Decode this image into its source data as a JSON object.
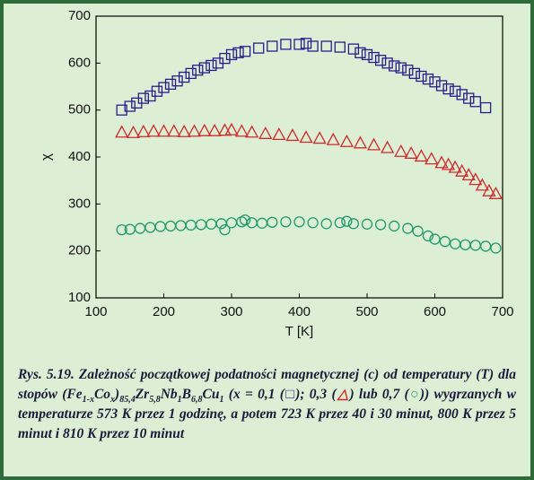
{
  "chart_data": {
    "type": "scatter",
    "xlabel": "T [K]",
    "ylabel": "χ",
    "xlim": [
      100,
      700
    ],
    "xticks": [
      100,
      200,
      300,
      400,
      500,
      600,
      700
    ],
    "ylim": [
      100,
      700
    ],
    "yticks": [
      100,
      200,
      300,
      400,
      500,
      600,
      700
    ],
    "series": [
      {
        "marker": "square",
        "color": "#2b1c8c",
        "x": [
          138,
          150,
          160,
          170,
          180,
          190,
          200,
          210,
          220,
          230,
          240,
          250,
          260,
          270,
          280,
          290,
          300,
          310,
          320,
          340,
          360,
          380,
          400,
          410,
          420,
          440,
          460,
          480,
          490,
          500,
          510,
          520,
          530,
          540,
          550,
          560,
          570,
          580,
          590,
          600,
          610,
          620,
          630,
          640,
          650,
          660,
          675
        ],
        "values": [
          500,
          508,
          515,
          525,
          530,
          540,
          548,
          555,
          562,
          570,
          578,
          585,
          590,
          595,
          600,
          610,
          618,
          622,
          625,
          632,
          636,
          640,
          640,
          642,
          636,
          636,
          634,
          630,
          622,
          618,
          612,
          606,
          600,
          594,
          590,
          585,
          578,
          572,
          566,
          560,
          552,
          545,
          540,
          533,
          525,
          518,
          505
        ]
      },
      {
        "marker": "triangle",
        "color": "#d02a2a",
        "x": [
          138,
          155,
          170,
          185,
          200,
          215,
          230,
          245,
          260,
          275,
          290,
          300,
          315,
          330,
          350,
          370,
          390,
          410,
          430,
          450,
          470,
          490,
          510,
          530,
          550,
          565,
          580,
          595,
          610,
          620,
          630,
          640,
          650,
          660,
          670,
          680,
          690
        ],
        "values": [
          453,
          452,
          454,
          455,
          455,
          455,
          454,
          455,
          456,
          456,
          457,
          458,
          455,
          453,
          450,
          448,
          446,
          442,
          440,
          437,
          433,
          430,
          426,
          420,
          412,
          408,
          402,
          396,
          388,
          384,
          378,
          370,
          362,
          352,
          340,
          328,
          322
        ]
      },
      {
        "marker": "circle",
        "color": "#1f9a6c",
        "x": [
          138,
          150,
          165,
          180,
          195,
          210,
          225,
          240,
          255,
          270,
          285,
          290,
          300,
          315,
          320,
          330,
          345,
          360,
          380,
          400,
          420,
          440,
          460,
          470,
          480,
          500,
          520,
          540,
          560,
          575,
          590,
          600,
          615,
          630,
          645,
          660,
          675,
          690
        ],
        "values": [
          245,
          246,
          248,
          250,
          252,
          253,
          254,
          255,
          256,
          257,
          258,
          245,
          260,
          262,
          266,
          260,
          259,
          261,
          262,
          262,
          260,
          258,
          260,
          263,
          258,
          257,
          256,
          253,
          248,
          242,
          232,
          225,
          220,
          215,
          213,
          212,
          210,
          206
        ]
      }
    ]
  },
  "caption": [
    {
      "text": "Rys. 5.19. Zależność początkowej podatności magnetycznej (c) od temperatury (T) dla  stopów (Fe"
    },
    {
      "sub": "1-x"
    },
    {
      "text": "Co"
    },
    {
      "sub": "x"
    },
    {
      "text": ")"
    },
    {
      "sub": "85,4"
    },
    {
      "text": "Zr"
    },
    {
      "sub": "5,8"
    },
    {
      "text": "Nb"
    },
    {
      "sub": "1"
    },
    {
      "text": "B"
    },
    {
      "sub": "6,8"
    },
    {
      "text": "Cu"
    },
    {
      "sub": "1"
    },
    {
      "text": " (x = 0,1 ("
    },
    {
      "symbol": "□"
    },
    {
      "text": "); 0,3 ("
    },
    {
      "symbol": "△"
    },
    {
      "text": ") lub 0,7 ("
    },
    {
      "symbol": "○"
    },
    {
      "text": ")) wygrzanych w temperaturze 573 K przez 1 godzinę, a potem 723 K przez 40 i 30 minut, 800 K przez 5 minut i 810 K przez 10 minut"
    }
  ]
}
